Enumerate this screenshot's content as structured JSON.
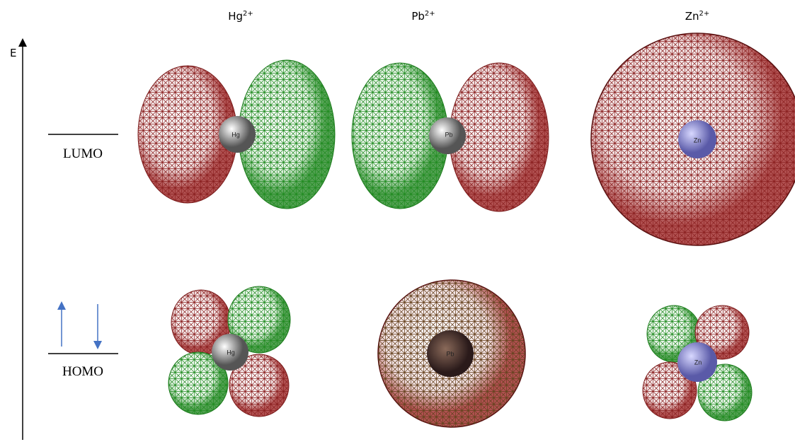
{
  "axis": {
    "label": "E"
  },
  "levels": [
    {
      "label": "LUMO"
    },
    {
      "label": "HOMO"
    }
  ],
  "columns": [
    {
      "symbol": "Hg",
      "charge": "2+"
    },
    {
      "symbol": "Pb",
      "charge": "2+"
    },
    {
      "symbol": "Zn",
      "charge": "2+"
    }
  ]
}
